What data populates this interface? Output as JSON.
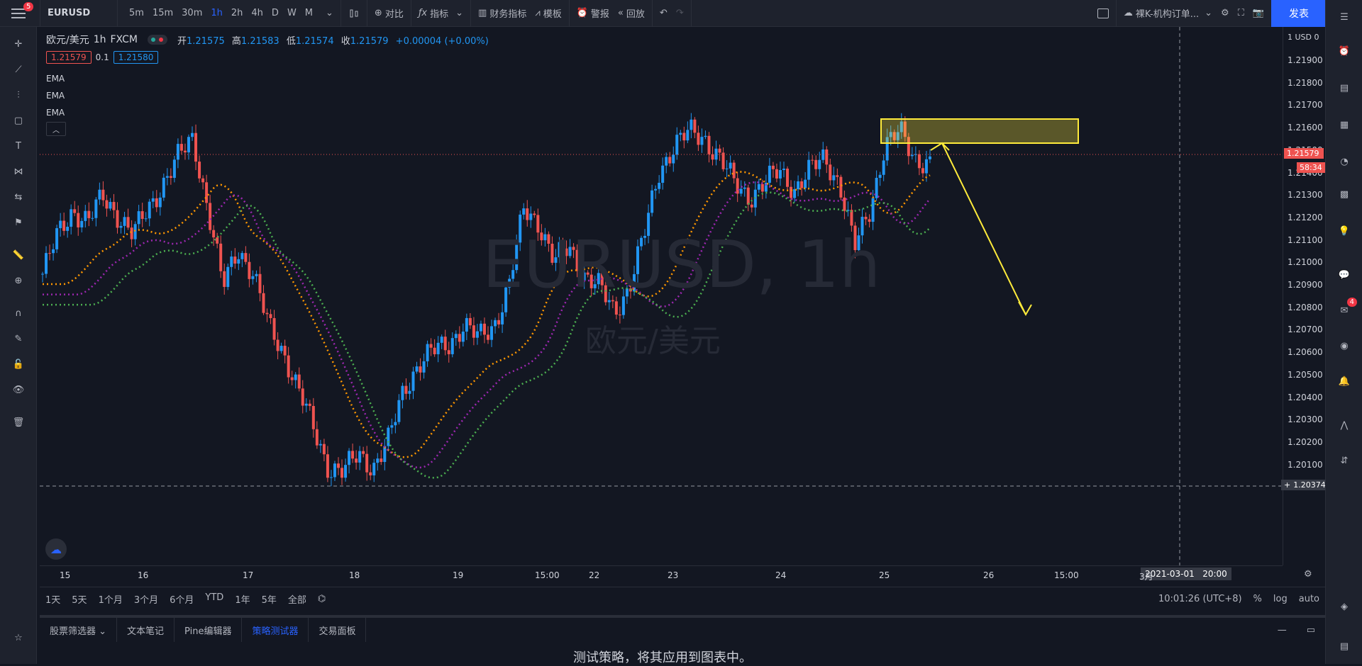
{
  "topbar": {
    "menu_badge": "5",
    "symbol": "EURUSD",
    "timeframes": [
      "5m",
      "15m",
      "30m",
      "1h",
      "2h",
      "4h",
      "D",
      "W",
      "M"
    ],
    "active_timeframe": "1h",
    "compare": "对比",
    "indicators": "指标",
    "financials": "财务指标",
    "templates": "模板",
    "alert": "警报",
    "replay": "回放",
    "layout_name": "裸K-机构订单...",
    "publish": "发表"
  },
  "legend": {
    "pair": "欧元/美元",
    "interval": "1h",
    "exchange": "FXCM",
    "open_label": "开",
    "open": "1.21575",
    "high_label": "高",
    "high": "1.21583",
    "low_label": "低",
    "low": "1.21574",
    "close_label": "收",
    "close": "1.21579",
    "change": "+0.00004 (+0.00%)",
    "bid": "1.21579",
    "spread": "0.1",
    "ask": "1.21580",
    "ema1": "EMA",
    "ema2": "EMA",
    "ema3": "EMA"
  },
  "watermark": {
    "symbol": "EURUSD, 1h",
    "name": "欧元/美元"
  },
  "yaxis": {
    "currency": "USD",
    "ticks": [
      "1.21900",
      "1.21800",
      "1.21700",
      "1.21600",
      "1.21500",
      "1.21400",
      "1.21300",
      "1.21200",
      "1.21100",
      "1.21000",
      "1.20900",
      "1.20800",
      "1.20700",
      "1.20600",
      "1.20500",
      "1.20400",
      "1.20300",
      "1.20200",
      "1.20100"
    ],
    "current_price": "1.21579",
    "countdown": "58:34",
    "crosshair_price": "1.20374"
  },
  "xaxis": {
    "ticks": [
      "15",
      "16",
      "17",
      "18",
      "19",
      "15:00",
      "22",
      "23",
      "24",
      "25",
      "26",
      "15:00",
      "3月"
    ],
    "crosshair_date": "2021-03-01",
    "crosshair_time": "20:00"
  },
  "bottom_toolbar": {
    "ranges": [
      "1天",
      "5天",
      "1个月",
      "3个月",
      "6个月",
      "YTD",
      "1年",
      "5年",
      "全部"
    ],
    "clock": "10:01:26 (UTC+8)",
    "percent": "%",
    "log": "log",
    "auto": "auto"
  },
  "panel": {
    "tabs": [
      "股票筛选器",
      "文本笔记",
      "Pine编辑器",
      "策略测试器",
      "交易面板"
    ],
    "active_tab": "策略测试器",
    "message": "测试策略，将其应用到图表中。"
  },
  "right_badge": "4",
  "colors": {
    "up": "#2196f3",
    "down": "#ef5350",
    "ema_fast": "#ff9800",
    "ema_mid": "#9c27b0",
    "ema_slow": "#4caf50",
    "zone": "#ffeb3b"
  }
}
